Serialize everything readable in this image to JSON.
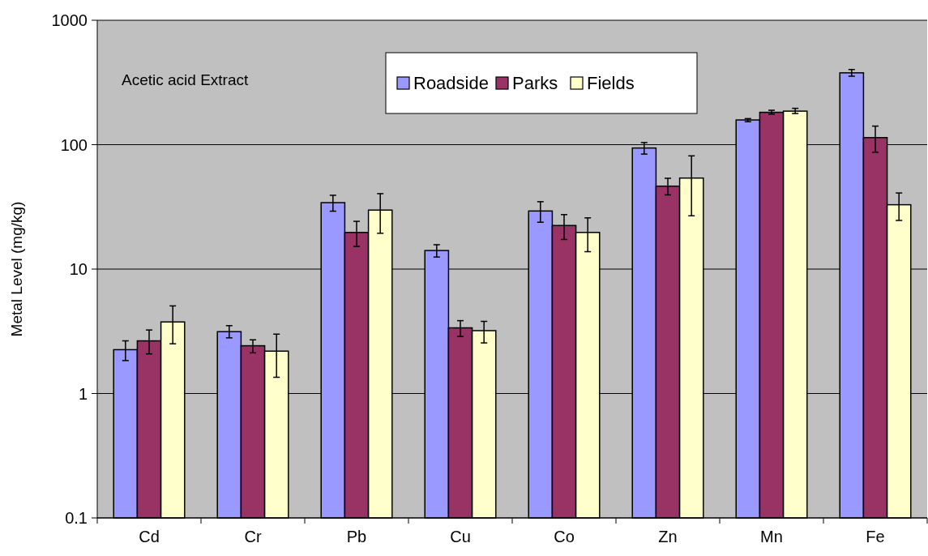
{
  "chart_data": {
    "type": "bar",
    "ylabel": "Metal Level (mg/kg)",
    "annotations": [
      "Acetic acid Extract"
    ],
    "categories": [
      "Cd",
      "Cr",
      "Pb",
      "Cu",
      "Co",
      "Zn",
      "Mn",
      "Fe"
    ],
    "series": [
      {
        "name": "Roadside",
        "color": "#9999ff",
        "values": [
          2.25,
          3.14,
          34.2,
          14.1,
          29.3,
          94,
          158,
          378
        ],
        "errors": [
          [
            1.84,
            2.65
          ],
          [
            2.8,
            3.51
          ],
          [
            29.2,
            39.2
          ],
          [
            12.5,
            15.7
          ],
          [
            23.8,
            34.8
          ],
          [
            84,
            104
          ],
          [
            153,
            162
          ],
          [
            355,
            402
          ]
        ]
      },
      {
        "name": "Parks",
        "color": "#993366",
        "values": [
          2.65,
          2.42,
          19.7,
          3.37,
          22.4,
          46.4,
          182,
          114
        ],
        "errors": [
          [
            2.08,
            3.24
          ],
          [
            2.12,
            2.7
          ],
          [
            15.2,
            24.2
          ],
          [
            2.87,
            3.85
          ],
          [
            17.3,
            27.4
          ],
          [
            39.5,
            53.7
          ],
          [
            176,
            189
          ],
          [
            87,
            141
          ]
        ]
      },
      {
        "name": "Fields",
        "color": "#ffffcc",
        "values": [
          3.76,
          2.19,
          29.8,
          3.2,
          19.7,
          53.9,
          186,
          32.9
        ],
        "errors": [
          [
            2.51,
            5.06
          ],
          [
            1.35,
            3.0
          ],
          [
            19.4,
            40.4
          ],
          [
            2.55,
            3.8
          ],
          [
            13.8,
            25.8
          ],
          [
            26.8,
            81.3
          ],
          [
            178,
            196
          ],
          [
            24.6,
            40.9
          ]
        ]
      }
    ],
    "log": true,
    "ylim": [
      0.1,
      1000
    ],
    "yticks": [
      0.1,
      1,
      10,
      100,
      1000
    ],
    "grid": "y",
    "legend": "top"
  }
}
